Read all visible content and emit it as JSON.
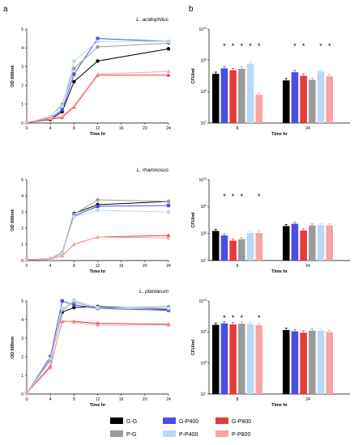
{
  "panels": {
    "a": "a",
    "b": "b"
  },
  "legend": [
    {
      "name": "G-G",
      "color": "#000000"
    },
    {
      "name": "G-P400",
      "color": "#4a4de6"
    },
    {
      "name": "G-P800",
      "color": "#e83a3a"
    },
    {
      "name": "P-G",
      "color": "#9a9a9a"
    },
    {
      "name": "P-P400",
      "color": "#b8d8f4"
    },
    {
      "name": "P-P800",
      "color": "#f5a3a3"
    }
  ],
  "chart_data": [
    {
      "type": "line",
      "species": "L. acidophilus",
      "xlabel": "Time hr",
      "ylabel": "OD 600nm",
      "x_ticks": [
        0,
        4,
        8,
        12,
        16,
        20,
        24
      ],
      "y_ticks": [
        0,
        1,
        2,
        3,
        4,
        5
      ],
      "xlim": [
        0,
        24
      ],
      "ylim": [
        0,
        5
      ],
      "x": [
        0,
        4,
        6,
        8,
        12,
        24
      ],
      "series": [
        {
          "name": "G-G",
          "values": [
            0.02,
            0.18,
            0.6,
            2.2,
            3.3,
            3.95
          ]
        },
        {
          "name": "G-P400",
          "values": [
            0.02,
            0.25,
            0.7,
            2.6,
            4.5,
            4.35
          ]
        },
        {
          "name": "G-P800",
          "values": [
            0.02,
            0.2,
            0.3,
            0.85,
            2.55,
            2.55
          ]
        },
        {
          "name": "P-G",
          "values": [
            0.02,
            0.3,
            1.0,
            2.9,
            4.05,
            4.25
          ]
        },
        {
          "name": "P-P400",
          "values": [
            0.02,
            0.35,
            0.9,
            3.3,
            4.35,
            4.35
          ]
        },
        {
          "name": "P-P800",
          "values": [
            0.02,
            0.25,
            0.35,
            0.9,
            2.6,
            2.75
          ]
        }
      ]
    },
    {
      "type": "bar",
      "species": "L. acidophilus",
      "xlabel": "Time hr",
      "ylabel": "CFU/ml",
      "y_scale": "log",
      "ylim": [
        10000000,
        10000000000
      ],
      "y_ticks": [
        "10^7",
        "10^8",
        "10^9",
        "10^10"
      ],
      "categories": [
        "8",
        "24"
      ],
      "series": [
        {
          "name": "G-G",
          "values": [
            370000000,
            230000000
          ]
        },
        {
          "name": "G-P400",
          "values": [
            560000000,
            420000000
          ]
        },
        {
          "name": "G-P800",
          "values": [
            480000000,
            320000000
          ]
        },
        {
          "name": "P-G",
          "values": [
            540000000,
            240000000
          ]
        },
        {
          "name": "P-P400",
          "values": [
            780000000,
            460000000
          ]
        },
        {
          "name": "P-P800",
          "values": [
            80000000,
            310000000
          ]
        }
      ],
      "significance": [
        [
          "",
          "*",
          "*",
          "*",
          "*",
          "*"
        ],
        [
          "",
          "*",
          "*",
          "",
          "*",
          "*"
        ]
      ]
    },
    {
      "type": "line",
      "species": "L. rhamnosus",
      "xlabel": "Time hr",
      "ylabel": "OD 600nm",
      "x_ticks": [
        0,
        4,
        8,
        12,
        16,
        20,
        24
      ],
      "y_ticks": [
        0,
        1,
        2,
        3,
        4,
        5
      ],
      "xlim": [
        0,
        24
      ],
      "ylim": [
        0,
        5
      ],
      "x": [
        0,
        4,
        6,
        8,
        12,
        24
      ],
      "series": [
        {
          "name": "G-G",
          "values": [
            0.05,
            0.1,
            0.45,
            2.9,
            3.45,
            3.65
          ]
        },
        {
          "name": "G-P400",
          "values": [
            0.05,
            0.1,
            0.45,
            2.75,
            3.35,
            3.4
          ]
        },
        {
          "name": "G-P800",
          "values": [
            0.05,
            0.08,
            0.3,
            1.0,
            1.45,
            1.55
          ]
        },
        {
          "name": "P-G",
          "values": [
            0.05,
            0.12,
            0.5,
            2.85,
            3.75,
            3.65
          ]
        },
        {
          "name": "P-P400",
          "values": [
            0.05,
            0.1,
            0.45,
            2.7,
            3.1,
            3.0
          ]
        },
        {
          "name": "P-P800",
          "values": [
            0.05,
            0.08,
            0.3,
            1.0,
            1.45,
            1.4
          ]
        }
      ]
    },
    {
      "type": "bar",
      "species": "L. rhamnosus",
      "xlabel": "Time hr",
      "ylabel": "CFU/ml",
      "y_scale": "log",
      "ylim": [
        10000000,
        10000000000
      ],
      "y_ticks": [
        "10^7",
        "10^8",
        "10^9",
        "10^10"
      ],
      "categories": [
        "8",
        "24"
      ],
      "series": [
        {
          "name": "G-G",
          "values": [
            125000000,
            190000000
          ]
        },
        {
          "name": "G-P400",
          "values": [
            85000000,
            230000000
          ]
        },
        {
          "name": "G-P800",
          "values": [
            55000000,
            130000000
          ]
        },
        {
          "name": "P-G",
          "values": [
            62000000,
            200000000
          ]
        },
        {
          "name": "P-P400",
          "values": [
            105000000,
            205000000
          ]
        },
        {
          "name": "P-P800",
          "values": [
            105000000,
            200000000
          ]
        }
      ],
      "significance": [
        [
          "",
          "*",
          "*",
          "*",
          "",
          "*"
        ],
        [
          "",
          "",
          "",
          "",
          "",
          ""
        ]
      ]
    },
    {
      "type": "line",
      "species": "L. plantarum",
      "xlabel": "Time hr",
      "ylabel": "OD 600nm",
      "x_ticks": [
        0,
        4,
        8,
        12,
        16,
        20,
        24
      ],
      "y_ticks": [
        0,
        1,
        2,
        3,
        4,
        5
      ],
      "xlim": [
        0,
        24
      ],
      "ylim": [
        0,
        5
      ],
      "x": [
        0,
        4,
        6,
        8,
        12,
        24
      ],
      "series": [
        {
          "name": "G-G",
          "values": [
            0.05,
            1.9,
            4.4,
            4.65,
            4.7,
            4.55
          ]
        },
        {
          "name": "G-P400",
          "values": [
            0.05,
            2.0,
            5.0,
            4.8,
            4.6,
            4.5
          ]
        },
        {
          "name": "G-P800",
          "values": [
            0.05,
            1.5,
            3.9,
            3.9,
            3.8,
            3.75
          ]
        },
        {
          "name": "P-G",
          "values": [
            0.05,
            1.8,
            4.5,
            4.95,
            4.6,
            4.7
          ]
        },
        {
          "name": "P-P400",
          "values": [
            0.05,
            1.9,
            4.6,
            5.05,
            4.65,
            4.6
          ]
        },
        {
          "name": "P-P800",
          "values": [
            0.05,
            1.4,
            3.95,
            3.85,
            3.7,
            3.7
          ]
        }
      ]
    },
    {
      "type": "bar",
      "species": "L. plantarum",
      "xlabel": "Time hr",
      "ylabel": "CFU/ml",
      "y_scale": "log",
      "ylim": [
        10000000,
        10000000000
      ],
      "y_ticks": [
        "10^7",
        "10^8",
        "10^9",
        "10^10"
      ],
      "categories": [
        "8",
        "24"
      ],
      "series": [
        {
          "name": "G-G",
          "values": [
            1700000000,
            1150000000
          ]
        },
        {
          "name": "G-P400",
          "values": [
            1900000000,
            1050000000
          ]
        },
        {
          "name": "G-P800",
          "values": [
            1750000000,
            950000000
          ]
        },
        {
          "name": "P-G",
          "values": [
            1850000000,
            1100000000
          ]
        },
        {
          "name": "P-P400",
          "values": [
            1800000000,
            1100000000
          ]
        },
        {
          "name": "P-P800",
          "values": [
            1650000000,
            1000000000
          ]
        }
      ],
      "significance": [
        [
          "",
          "*",
          "*",
          "*",
          "",
          "*"
        ],
        [
          "",
          "",
          "",
          "",
          "",
          ""
        ]
      ]
    }
  ]
}
